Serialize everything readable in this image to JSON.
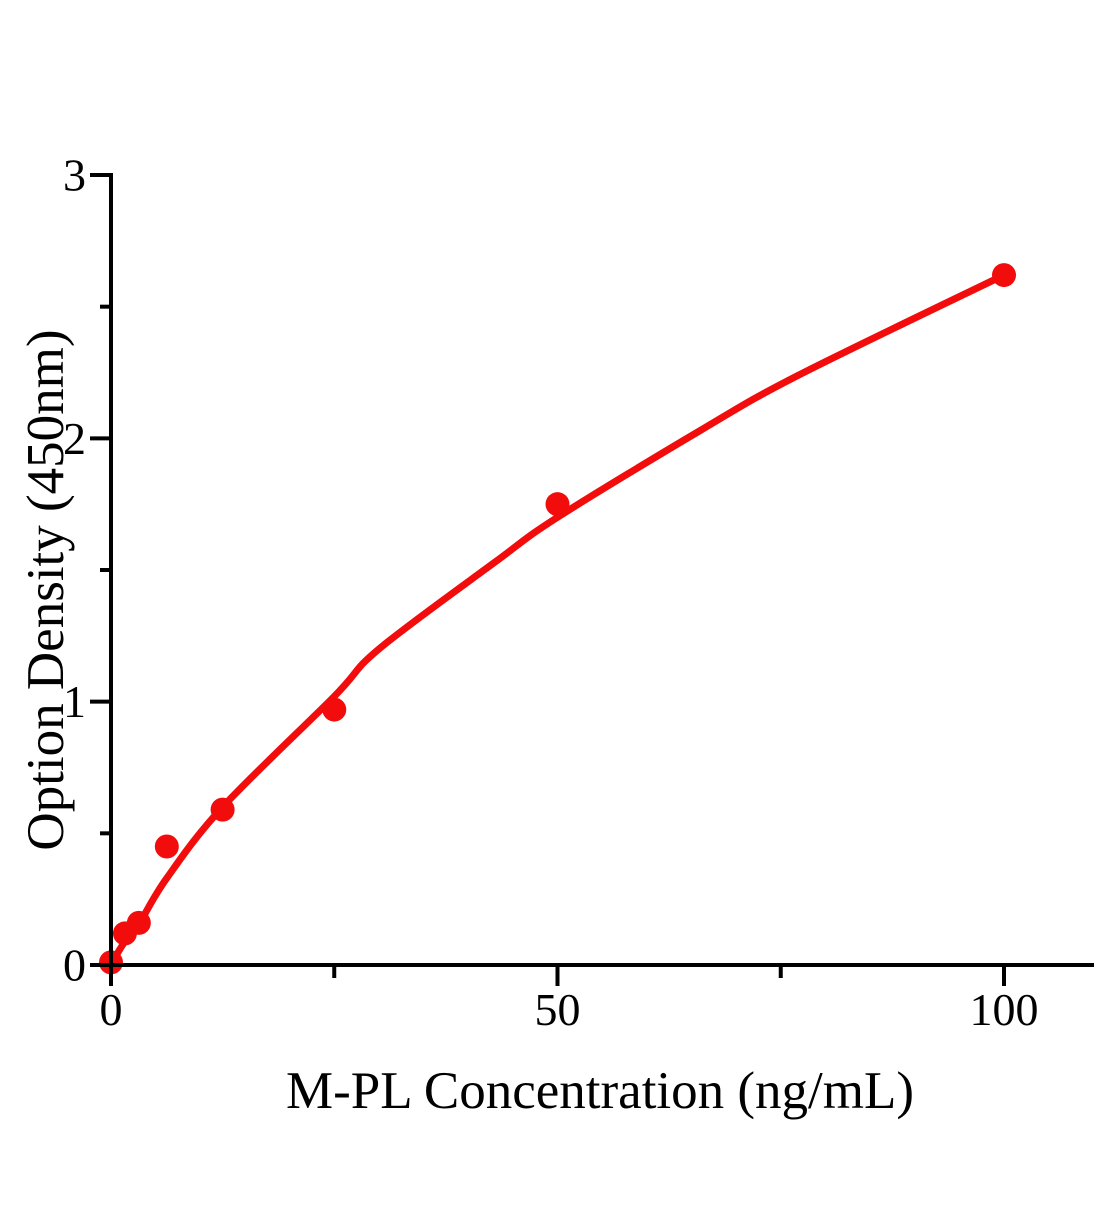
{
  "chart_data": {
    "type": "scatter",
    "title": "",
    "xlabel": "M-PL Concentration（ng/mL）",
    "ylabel": "Option Density（450nm）",
    "xlim": [
      0,
      110
    ],
    "ylim": [
      0,
      3
    ],
    "x_tick_labels": [
      "0",
      "50",
      "100"
    ],
    "y_tick_labels": [
      "0",
      "1",
      "2",
      "3"
    ],
    "x_major_ticks": [
      0,
      50,
      100
    ],
    "x_minor_ticks": [
      25,
      75
    ],
    "y_major_ticks": [
      0,
      1,
      2,
      3
    ],
    "y_minor_ticks": [
      0.5,
      1.5,
      2.5
    ],
    "grid": false,
    "legend": false,
    "colors": {
      "curve": "#f20c0c",
      "marker": "#f20c0c",
      "axis": "#000000"
    },
    "series": [
      {
        "name": "standard data points",
        "type": "scatter",
        "marker": "circle",
        "x": [
          0,
          1.56,
          3.12,
          6.25,
          12.5,
          25,
          50,
          100
        ],
        "y": [
          0.01,
          0.12,
          0.16,
          0.45,
          0.59,
          0.97,
          1.75,
          2.62
        ]
      },
      {
        "name": "fitted standard curve",
        "type": "line",
        "x": [
          0,
          1,
          2.2,
          3.2,
          6.25,
          12.5,
          25,
          30,
          43,
          50,
          66,
          77,
          100
        ],
        "y": [
          0,
          0.06,
          0.12,
          0.16,
          0.33,
          0.6,
          1.02,
          1.2,
          1.53,
          1.7,
          2.03,
          2.24,
          2.62
        ]
      }
    ]
  }
}
